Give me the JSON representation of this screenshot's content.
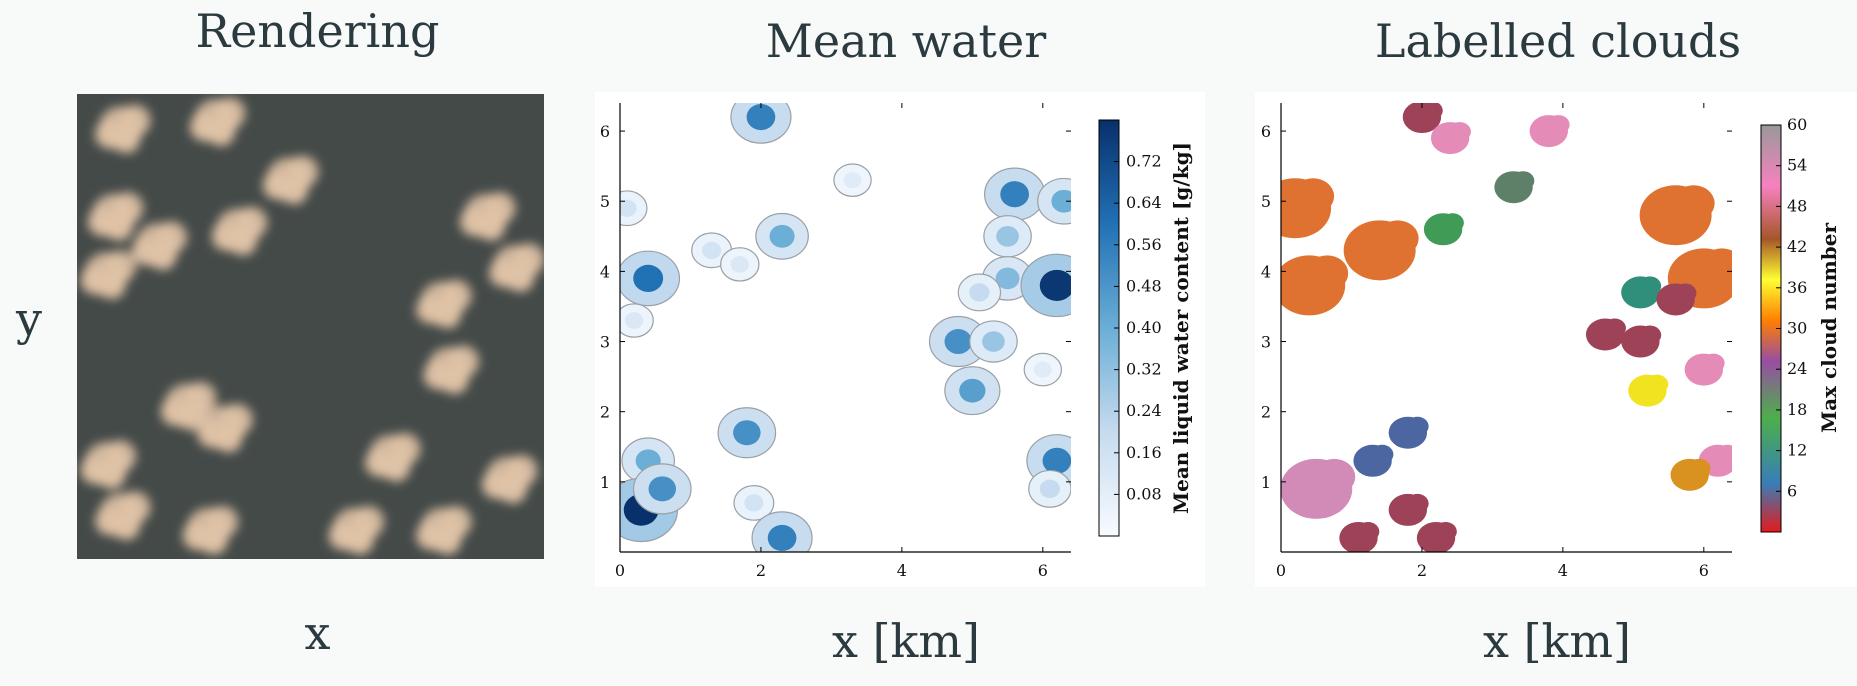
{
  "panels": {
    "rendering": {
      "title": "Rendering",
      "xlabel": "x",
      "ylabel": "y"
    },
    "mean_water": {
      "title": "Mean water",
      "xlabel": "x [km]"
    },
    "labelled": {
      "title": "Labelled clouds",
      "xlabel": "x [km]"
    }
  },
  "chart_data": [
    {
      "type": "heatmap",
      "title": "Rendering",
      "xlabel": "x",
      "ylabel": "y",
      "description_colors": {
        "background": "#444a48",
        "cloud": "#e2c4a8"
      },
      "clouds": [
        {
          "x": 0.6,
          "y": 5.9
        },
        {
          "x": 1.9,
          "y": 6.0
        },
        {
          "x": 0.5,
          "y": 4.7
        },
        {
          "x": 0.4,
          "y": 3.9
        },
        {
          "x": 1.1,
          "y": 4.3
        },
        {
          "x": 2.2,
          "y": 4.5
        },
        {
          "x": 2.9,
          "y": 5.2
        },
        {
          "x": 5.6,
          "y": 4.7
        },
        {
          "x": 6.0,
          "y": 4.0
        },
        {
          "x": 5.0,
          "y": 3.5
        },
        {
          "x": 5.1,
          "y": 2.6
        },
        {
          "x": 1.5,
          "y": 2.1
        },
        {
          "x": 2.0,
          "y": 1.8
        },
        {
          "x": 0.4,
          "y": 1.3
        },
        {
          "x": 0.6,
          "y": 0.6
        },
        {
          "x": 1.8,
          "y": 0.4
        },
        {
          "x": 4.3,
          "y": 1.4
        },
        {
          "x": 5.9,
          "y": 1.1
        },
        {
          "x": 5.0,
          "y": 0.4
        },
        {
          "x": 3.8,
          "y": 0.4
        }
      ]
    },
    {
      "type": "heatmap",
      "title": "Mean water",
      "xlabel": "x [km]",
      "xticks": [
        "0",
        "2",
        "4",
        "6"
      ],
      "yticks": [
        "1",
        "2",
        "3",
        "4",
        "5",
        "6"
      ],
      "xlim": [
        0,
        6.4
      ],
      "ylim": [
        0,
        6.4
      ],
      "colorbar": {
        "label": "Mean liquid water content [g/kg]",
        "ticks": [
          "0.08",
          "0.16",
          "0.24",
          "0.32",
          "0.40",
          "0.48",
          "0.56",
          "0.64",
          "0.72"
        ],
        "range": [
          0,
          0.8
        ],
        "colormap": "Blues"
      },
      "blobs": [
        {
          "x": 2.0,
          "y": 6.2,
          "v": 0.55
        },
        {
          "x": 0.1,
          "y": 4.9,
          "v": 0.15
        },
        {
          "x": 0.4,
          "y": 3.9,
          "v": 0.6
        },
        {
          "x": 0.2,
          "y": 3.3,
          "v": 0.12
        },
        {
          "x": 1.3,
          "y": 4.3,
          "v": 0.15
        },
        {
          "x": 2.3,
          "y": 4.5,
          "v": 0.4
        },
        {
          "x": 1.7,
          "y": 4.1,
          "v": 0.12
        },
        {
          "x": 3.3,
          "y": 5.3,
          "v": 0.1
        },
        {
          "x": 5.6,
          "y": 5.1,
          "v": 0.55
        },
        {
          "x": 5.5,
          "y": 4.5,
          "v": 0.3
        },
        {
          "x": 5.5,
          "y": 3.9,
          "v": 0.35
        },
        {
          "x": 6.2,
          "y": 3.8,
          "v": 0.78
        },
        {
          "x": 6.3,
          "y": 5.0,
          "v": 0.4
        },
        {
          "x": 5.1,
          "y": 3.7,
          "v": 0.2
        },
        {
          "x": 4.8,
          "y": 3.0,
          "v": 0.5
        },
        {
          "x": 5.3,
          "y": 3.0,
          "v": 0.3
        },
        {
          "x": 5.0,
          "y": 2.3,
          "v": 0.45
        },
        {
          "x": 6.0,
          "y": 2.6,
          "v": 0.1
        },
        {
          "x": 1.8,
          "y": 1.7,
          "v": 0.5
        },
        {
          "x": 0.4,
          "y": 1.3,
          "v": 0.4
        },
        {
          "x": 0.3,
          "y": 0.6,
          "v": 0.8
        },
        {
          "x": 0.6,
          "y": 0.9,
          "v": 0.5
        },
        {
          "x": 1.9,
          "y": 0.7,
          "v": 0.15
        },
        {
          "x": 2.3,
          "y": 0.2,
          "v": 0.55
        },
        {
          "x": 6.2,
          "y": 1.3,
          "v": 0.55
        },
        {
          "x": 6.1,
          "y": 0.9,
          "v": 0.2
        }
      ]
    },
    {
      "type": "heatmap",
      "title": "Labelled clouds",
      "xlabel": "x [km]",
      "xticks": [
        "0",
        "2",
        "4",
        "6"
      ],
      "yticks": [
        "1",
        "2",
        "3",
        "4",
        "5",
        "6"
      ],
      "xlim": [
        0,
        6.4
      ],
      "ylim": [
        0,
        6.4
      ],
      "colorbar": {
        "label": "Max cloud number",
        "ticks": [
          "6",
          "12",
          "18",
          "24",
          "30",
          "36",
          "42",
          "48",
          "54",
          "60"
        ],
        "range": [
          0,
          60
        ]
      },
      "clouds": [
        {
          "x": 2.0,
          "y": 6.2,
          "n": 50
        },
        {
          "x": 2.4,
          "y": 5.9,
          "n": 56
        },
        {
          "x": 3.8,
          "y": 6.0,
          "n": 56
        },
        {
          "x": 0.2,
          "y": 4.9,
          "n": 30
        },
        {
          "x": 0.4,
          "y": 3.8,
          "n": 30
        },
        {
          "x": 1.4,
          "y": 4.3,
          "n": 30
        },
        {
          "x": 2.3,
          "y": 4.6,
          "n": 18
        },
        {
          "x": 3.3,
          "y": 5.2,
          "n": 16
        },
        {
          "x": 5.6,
          "y": 4.8,
          "n": 30
        },
        {
          "x": 6.0,
          "y": 3.9,
          "n": 30
        },
        {
          "x": 5.1,
          "y": 3.7,
          "n": 14
        },
        {
          "x": 5.6,
          "y": 3.6,
          "n": 50
        },
        {
          "x": 4.6,
          "y": 3.1,
          "n": 50
        },
        {
          "x": 5.1,
          "y": 3.0,
          "n": 50
        },
        {
          "x": 5.2,
          "y": 2.3,
          "n": 36
        },
        {
          "x": 6.0,
          "y": 2.6,
          "n": 56
        },
        {
          "x": 1.8,
          "y": 1.7,
          "n": 6
        },
        {
          "x": 1.3,
          "y": 1.3,
          "n": 6
        },
        {
          "x": 0.5,
          "y": 0.9,
          "n": 54
        },
        {
          "x": 1.1,
          "y": 0.2,
          "n": 50
        },
        {
          "x": 1.8,
          "y": 0.6,
          "n": 50
        },
        {
          "x": 2.2,
          "y": 0.2,
          "n": 50
        },
        {
          "x": 6.2,
          "y": 1.3,
          "n": 56
        },
        {
          "x": 5.8,
          "y": 1.1,
          "n": 28
        }
      ]
    }
  ]
}
